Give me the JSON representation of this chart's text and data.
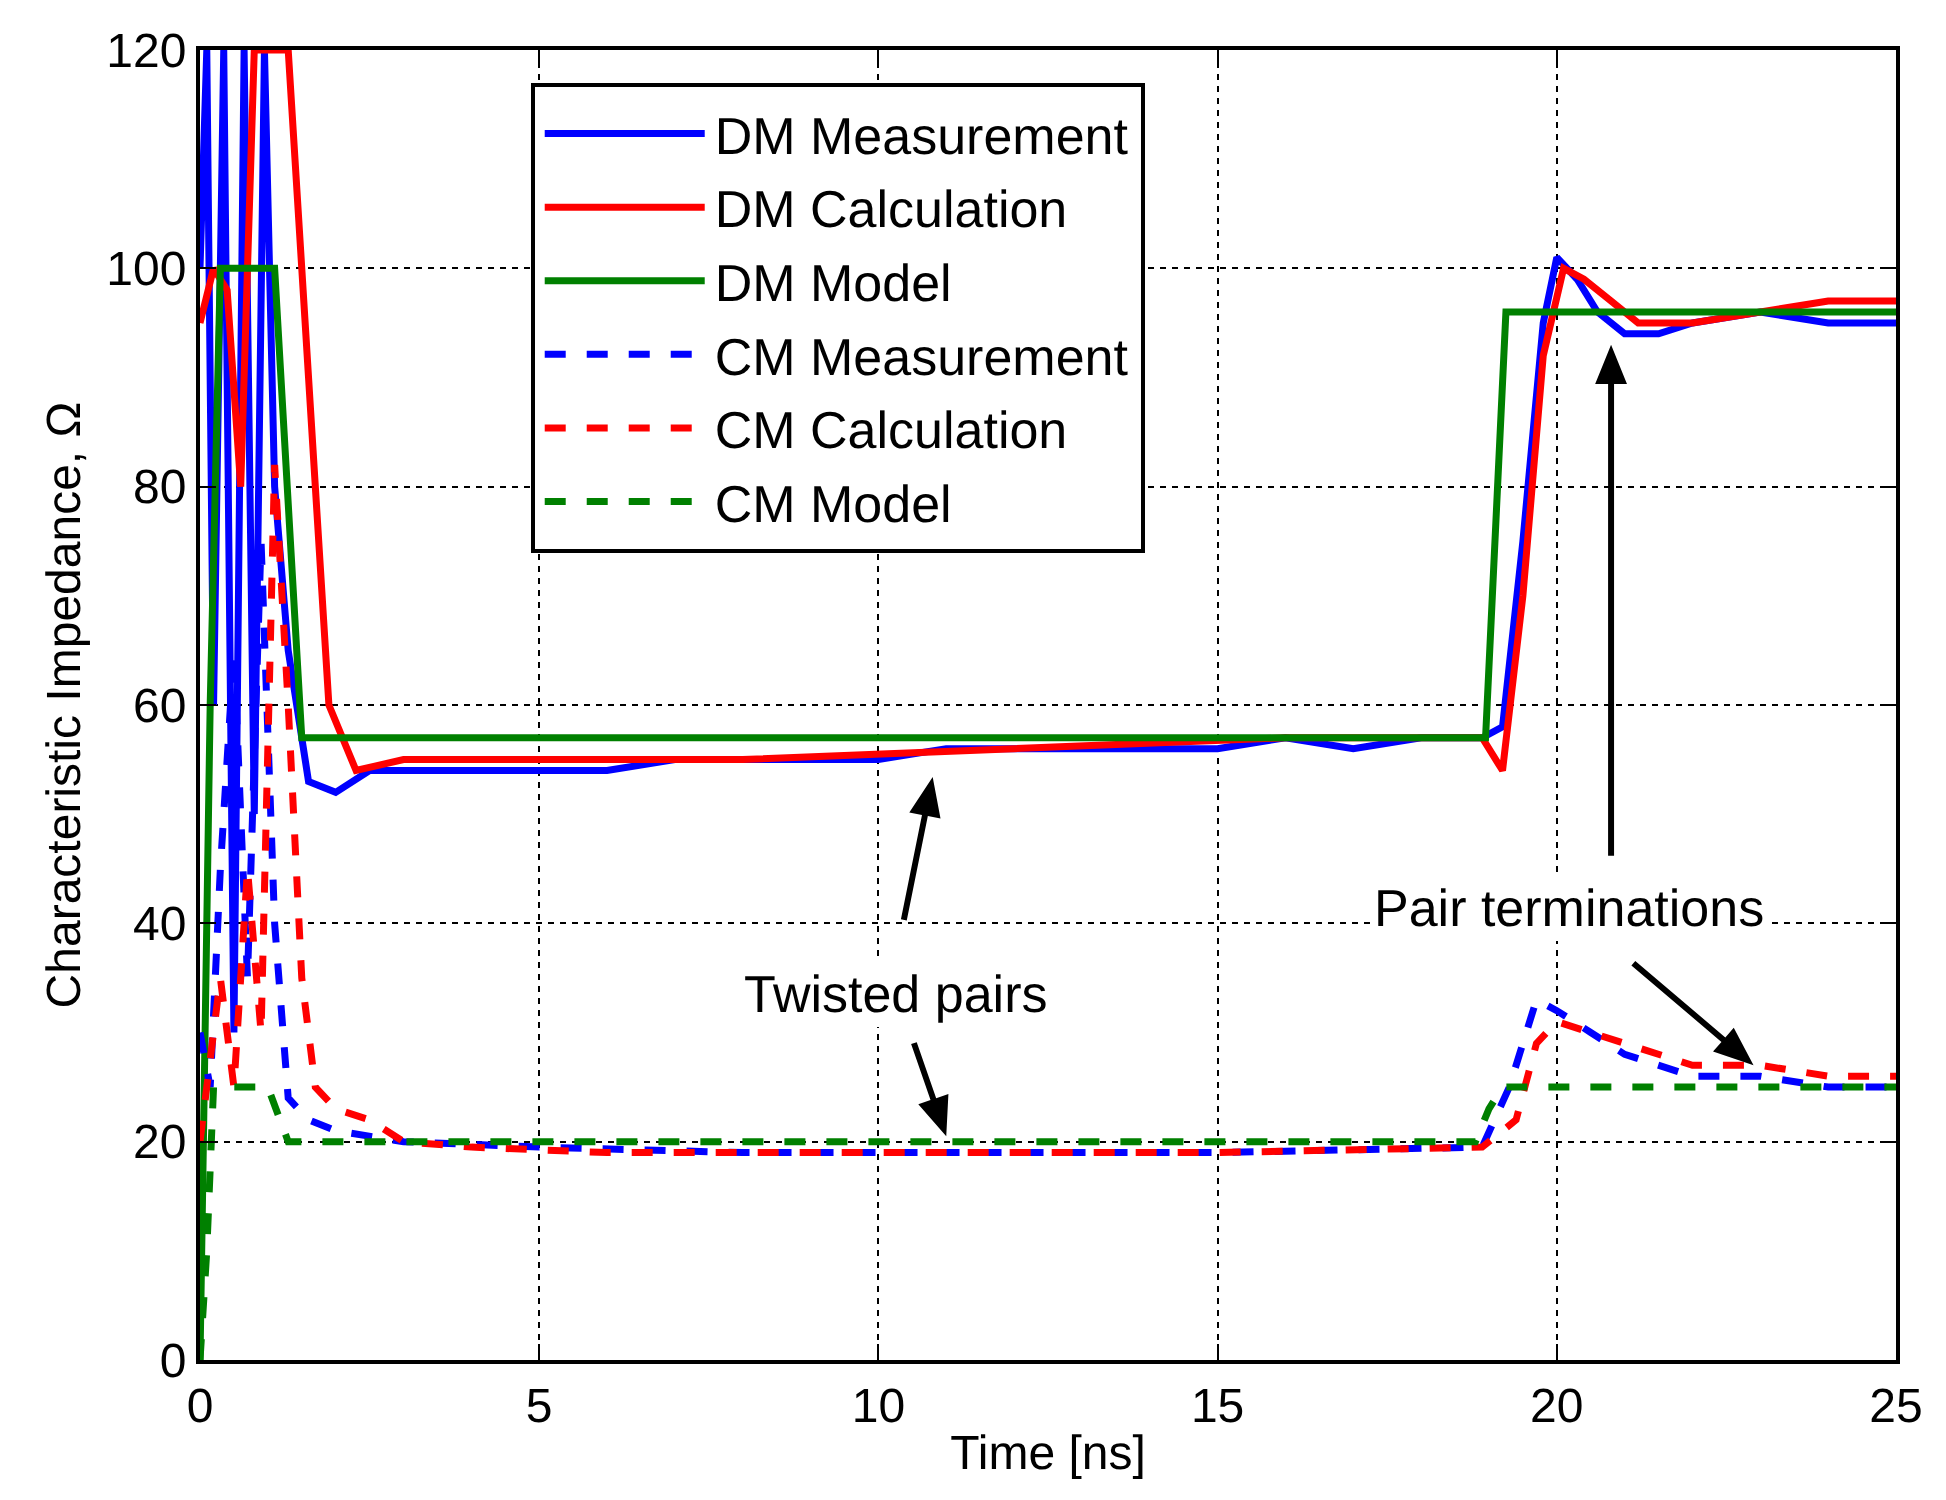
{
  "chart_data": {
    "type": "line",
    "xlabel": "Time [ns]",
    "ylabel": "Characteristic Impedance, Ω",
    "xlim": [
      0,
      25
    ],
    "xticks": [
      0,
      5,
      10,
      15,
      20,
      25
    ],
    "ylim": [
      0,
      120
    ],
    "yticks": [
      0,
      20,
      40,
      60,
      80,
      100,
      120
    ],
    "grid": true,
    "legend": "top",
    "marker": "none",
    "series": [
      {
        "name": "DM Measurement",
        "color": "#0000ff",
        "line_style": "solid",
        "x": [
          0,
          0.1,
          0.2,
          0.35,
          0.5,
          0.65,
          0.8,
          0.95,
          1.1,
          1.3,
          1.6,
          2,
          2.5,
          3,
          4,
          5,
          6,
          7,
          8,
          9,
          10,
          11,
          12,
          13,
          14,
          15,
          16,
          17,
          18,
          18.9,
          19.2,
          19.5,
          19.8,
          20,
          20.3,
          20.6,
          21,
          21.5,
          22,
          23,
          24,
          25
        ],
        "values": [
          100,
          120,
          60,
          120,
          30,
          120,
          50,
          120,
          80,
          65,
          53,
          52,
          54,
          54,
          54,
          54,
          54,
          55,
          55,
          55,
          55,
          56,
          56,
          56,
          56,
          56,
          57,
          56,
          57,
          57,
          58,
          75,
          95,
          101,
          99,
          96,
          94,
          94,
          95,
          96,
          95,
          95
        ]
      },
      {
        "name": "DM Calculation",
        "color": "#ff0000",
        "line_style": "solid",
        "x": [
          0,
          0.2,
          0.4,
          0.6,
          0.8,
          1.0,
          1.3,
          1.6,
          1.9,
          2.3,
          3,
          5,
          8,
          12,
          16,
          18.9,
          19.2,
          19.5,
          19.8,
          20.1,
          20.4,
          20.8,
          21.2,
          22,
          23,
          24,
          25
        ],
        "values": [
          95,
          100,
          98,
          80,
          120,
          120,
          120,
          90,
          60,
          54,
          55,
          55,
          55,
          56,
          57,
          57,
          54,
          70,
          92,
          100,
          99,
          97,
          95,
          95,
          96,
          97,
          97
        ]
      },
      {
        "name": "DM Model",
        "color": "#008000",
        "line_style": "solid",
        "x": [
          0,
          0.15,
          0.3,
          1.1,
          1.5,
          18.95,
          19.25,
          25
        ],
        "values": [
          0,
          60,
          100,
          100,
          57,
          57,
          96,
          96
        ]
      },
      {
        "name": "CM Measurement",
        "color": "#0000ff",
        "line_style": "dashed",
        "x": [
          0,
          0.15,
          0.3,
          0.5,
          0.7,
          0.9,
          1.1,
          1.3,
          1.6,
          2,
          3,
          5,
          8,
          10,
          15,
          18.9,
          19.3,
          19.7,
          20,
          20.5,
          21,
          22,
          23,
          24,
          25
        ],
        "values": [
          30,
          25,
          45,
          65,
          35,
          75,
          40,
          24,
          22,
          21,
          20,
          19.5,
          19,
          19,
          19,
          19.5,
          25,
          33,
          32,
          30,
          28,
          26,
          26,
          25,
          25
        ]
      },
      {
        "name": "CM Calculation",
        "color": "#ff0000",
        "line_style": "dashed",
        "x": [
          0,
          0.3,
          0.5,
          0.7,
          0.9,
          1.1,
          1.3,
          1.5,
          1.7,
          2,
          2.5,
          3,
          4,
          6,
          10,
          15,
          18.9,
          19.4,
          19.7,
          20,
          20.5,
          21,
          22,
          23,
          24,
          25
        ],
        "values": [
          20,
          35,
          25,
          45,
          30,
          82,
          60,
          35,
          25,
          23,
          22,
          20,
          19.5,
          19,
          19,
          19,
          19.5,
          22,
          29,
          31,
          30,
          29,
          27,
          27,
          26,
          26
        ]
      },
      {
        "name": "CM Model",
        "color": "#008000",
        "line_style": "dashed",
        "x": [
          0,
          0.1,
          0.2,
          0.5,
          1.0,
          1.3,
          1.5,
          18.8,
          19.0,
          19.2,
          25
        ],
        "values": [
          0,
          10,
          25,
          25,
          25,
          20,
          20,
          20,
          23,
          25,
          25
        ]
      }
    ],
    "annotations": [
      {
        "text": "Twisted pairs",
        "x": 11,
        "y": 20.5
      },
      {
        "text": "Pair terminations",
        "x": 22.9,
        "y": 27
      }
    ]
  }
}
